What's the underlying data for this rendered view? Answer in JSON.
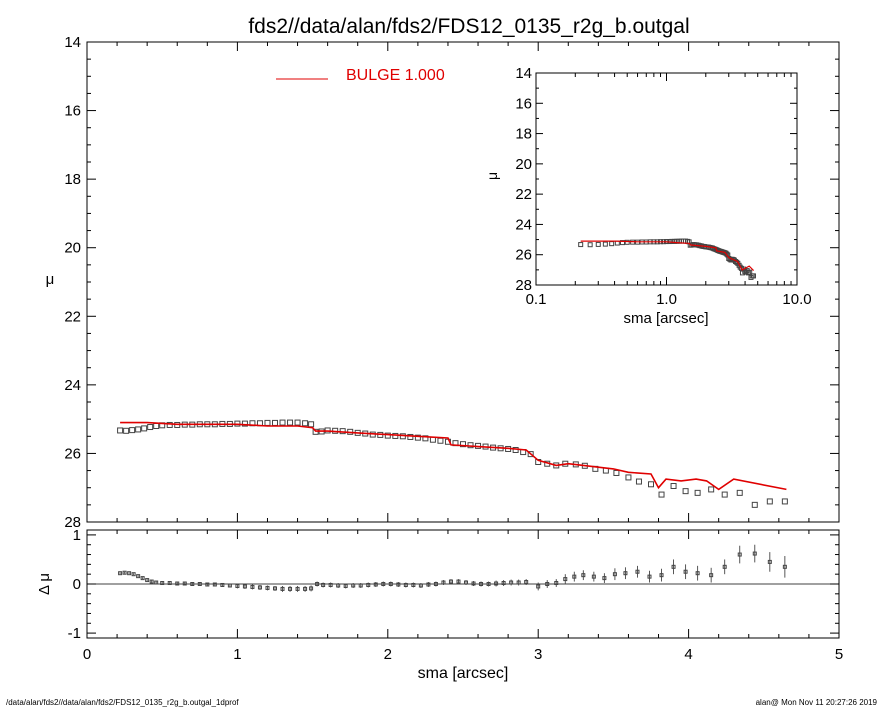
{
  "title": "fds2//data/alan/fds2/FDS12_0135_r2g_b.outgal",
  "footer": {
    "left": "/data/alan/fds2//data/alan/fds2/FDS12_0135_r2g_b.outgal_1dprof",
    "right": "alan@  Mon Nov 11 20:27:26 2019"
  },
  "colors": {
    "model": "#e00000",
    "data": "#444444",
    "axes": "#000000"
  },
  "chart_data": [
    {
      "type": "scatter",
      "panel": "main",
      "xlabel": "",
      "ylabel": "μ",
      "xlim": [
        0,
        5
      ],
      "ylim": [
        28,
        14
      ],
      "yticks": [
        "14",
        "16",
        "18",
        "20",
        "22",
        "24",
        "26",
        "28"
      ],
      "legend": {
        "label": "BULGE  1.000",
        "placement": "top-center"
      },
      "series": [
        {
          "name": "BULGE  1.000",
          "style": "line",
          "x": [
            0.22,
            0.4,
            0.6,
            0.8,
            1.0,
            1.2,
            1.4,
            1.5,
            1.52,
            1.6,
            1.8,
            2.0,
            2.2,
            2.4,
            2.42,
            2.6,
            2.8,
            2.92,
            3.0,
            3.12,
            3.2,
            3.3,
            3.5,
            3.6,
            3.75,
            3.8,
            3.85,
            3.95,
            4.05,
            4.12,
            4.2,
            4.3,
            4.65
          ],
          "y": [
            25.1,
            25.1,
            25.15,
            25.15,
            25.15,
            25.2,
            25.2,
            25.25,
            25.35,
            25.35,
            25.4,
            25.45,
            25.5,
            25.55,
            25.75,
            25.8,
            25.85,
            25.9,
            26.2,
            26.35,
            26.3,
            26.35,
            26.45,
            26.55,
            26.6,
            27.0,
            26.75,
            26.8,
            26.75,
            26.8,
            27.05,
            26.75,
            27.05
          ]
        },
        {
          "name": "",
          "style": "square-markers",
          "x": [
            0.22,
            0.26,
            0.3,
            0.34,
            0.38,
            0.42,
            0.46,
            0.5,
            0.55,
            0.6,
            0.65,
            0.7,
            0.75,
            0.8,
            0.85,
            0.9,
            0.95,
            1.0,
            1.05,
            1.1,
            1.15,
            1.2,
            1.25,
            1.3,
            1.35,
            1.4,
            1.45,
            1.49,
            1.52,
            1.56,
            1.6,
            1.65,
            1.7,
            1.75,
            1.8,
            1.85,
            1.9,
            1.95,
            2.0,
            2.05,
            2.1,
            2.15,
            2.2,
            2.25,
            2.3,
            2.35,
            2.4,
            2.45,
            2.5,
            2.55,
            2.6,
            2.65,
            2.7,
            2.75,
            2.8,
            2.85,
            2.9,
            2.95,
            3.0,
            3.06,
            3.12,
            3.18,
            3.25,
            3.31,
            3.38,
            3.45,
            3.52,
            3.6,
            3.67,
            3.75,
            3.82,
            3.9,
            3.98,
            4.06,
            4.15,
            4.24,
            4.34,
            4.44,
            4.54,
            4.64
          ],
          "y": [
            25.33,
            25.34,
            25.32,
            25.3,
            25.27,
            25.23,
            25.2,
            25.18,
            25.17,
            25.17,
            25.16,
            25.16,
            25.15,
            25.15,
            25.15,
            25.14,
            25.14,
            25.13,
            25.13,
            25.12,
            25.12,
            25.11,
            25.11,
            25.1,
            25.1,
            25.1,
            25.12,
            25.15,
            25.37,
            25.36,
            25.33,
            25.34,
            25.35,
            25.37,
            25.4,
            25.42,
            25.45,
            25.46,
            25.48,
            25.49,
            25.5,
            25.52,
            25.54,
            25.56,
            25.6,
            25.63,
            25.66,
            25.7,
            25.73,
            25.76,
            25.78,
            25.8,
            25.83,
            25.85,
            25.87,
            25.9,
            25.96,
            26.02,
            26.25,
            26.3,
            26.35,
            26.3,
            26.32,
            26.36,
            26.45,
            26.5,
            26.57,
            26.7,
            26.82,
            26.9,
            27.2,
            26.95,
            27.1,
            27.15,
            27.05,
            27.2,
            27.15,
            27.5,
            27.4,
            27.4
          ]
        }
      ]
    },
    {
      "type": "scatter",
      "panel": "residuals",
      "xlabel": "sma [arcsec]",
      "ylabel": "Δ μ",
      "xlim": [
        0,
        5
      ],
      "ylim": [
        -1.1,
        1.1
      ],
      "xticks": [
        "0",
        "1",
        "2",
        "3",
        "4",
        "5"
      ],
      "yticks": [
        "1",
        "0",
        "-1"
      ],
      "series": [
        {
          "name": "",
          "style": "markers-with-errorbars",
          "x": [
            0.22,
            0.25,
            0.28,
            0.31,
            0.34,
            0.37,
            0.4,
            0.43,
            0.46,
            0.5,
            0.55,
            0.6,
            0.65,
            0.7,
            0.75,
            0.8,
            0.85,
            0.9,
            0.95,
            1.0,
            1.05,
            1.1,
            1.15,
            1.2,
            1.25,
            1.3,
            1.35,
            1.4,
            1.45,
            1.49,
            1.53,
            1.57,
            1.62,
            1.67,
            1.72,
            1.77,
            1.82,
            1.87,
            1.92,
            1.97,
            2.02,
            2.07,
            2.12,
            2.17,
            2.22,
            2.27,
            2.32,
            2.37,
            2.42,
            2.47,
            2.52,
            2.57,
            2.62,
            2.67,
            2.72,
            2.77,
            2.82,
            2.87,
            2.92,
            3.0,
            3.06,
            3.12,
            3.18,
            3.24,
            3.3,
            3.37,
            3.44,
            3.51,
            3.58,
            3.66,
            3.74,
            3.82,
            3.9,
            3.98,
            4.06,
            4.15,
            4.24,
            4.34,
            4.44,
            4.54,
            4.64
          ],
          "y": [
            0.22,
            0.23,
            0.22,
            0.2,
            0.16,
            0.12,
            0.08,
            0.05,
            0.03,
            0.02,
            0.02,
            0.01,
            0.01,
            0.0,
            0.0,
            -0.01,
            -0.01,
            -0.02,
            -0.03,
            -0.04,
            -0.05,
            -0.06,
            -0.07,
            -0.08,
            -0.09,
            -0.1,
            -0.1,
            -0.1,
            -0.1,
            -0.09,
            0.0,
            -0.02,
            -0.02,
            -0.03,
            -0.04,
            -0.03,
            -0.03,
            -0.02,
            -0.01,
            0.0,
            0.0,
            -0.01,
            -0.02,
            -0.02,
            -0.03,
            -0.01,
            0.0,
            0.03,
            0.05,
            0.05,
            0.03,
            0.01,
            0.0,
            0.0,
            0.01,
            0.02,
            0.03,
            0.03,
            0.04,
            -0.05,
            0.0,
            0.02,
            0.1,
            0.15,
            0.18,
            0.15,
            0.12,
            0.2,
            0.22,
            0.25,
            0.15,
            0.18,
            0.35,
            0.25,
            0.22,
            0.18,
            0.35,
            0.6,
            0.62,
            0.45,
            0.35
          ],
          "err": [
            0.02,
            0.02,
            0.02,
            0.02,
            0.02,
            0.02,
            0.02,
            0.03,
            0.03,
            0.03,
            0.03,
            0.03,
            0.03,
            0.03,
            0.04,
            0.04,
            0.04,
            0.04,
            0.04,
            0.05,
            0.05,
            0.05,
            0.05,
            0.05,
            0.05,
            0.06,
            0.06,
            0.06,
            0.06,
            0.06,
            0.05,
            0.05,
            0.05,
            0.05,
            0.05,
            0.05,
            0.05,
            0.05,
            0.05,
            0.05,
            0.05,
            0.05,
            0.05,
            0.05,
            0.05,
            0.05,
            0.05,
            0.05,
            0.05,
            0.05,
            0.05,
            0.05,
            0.05,
            0.05,
            0.06,
            0.06,
            0.06,
            0.06,
            0.06,
            0.08,
            0.08,
            0.08,
            0.1,
            0.1,
            0.1,
            0.1,
            0.1,
            0.12,
            0.12,
            0.12,
            0.12,
            0.13,
            0.15,
            0.15,
            0.15,
            0.15,
            0.15,
            0.18,
            0.18,
            0.2,
            0.22
          ]
        }
      ]
    },
    {
      "type": "scatter",
      "panel": "inset",
      "xlabel": "sma [arcsec]",
      "ylabel": "μ",
      "xscale": "log",
      "xlim": [
        0.1,
        10.0
      ],
      "ylim": [
        28,
        14
      ],
      "xticks": [
        "0.1",
        "1.0",
        "10.0"
      ],
      "yticks": [
        "14",
        "16",
        "18",
        "20",
        "22",
        "24",
        "26",
        "28"
      ],
      "series": [
        {
          "name": "",
          "style": "line",
          "x": [
            0.22,
            0.4,
            0.6,
            0.8,
            1.0,
            1.2,
            1.5,
            1.52,
            2.0,
            2.4,
            2.42,
            2.8,
            3.0,
            3.5,
            3.8,
            4.3,
            4.65
          ],
          "y": [
            25.1,
            25.1,
            25.15,
            25.15,
            25.15,
            25.2,
            25.25,
            25.35,
            25.45,
            25.55,
            25.75,
            25.85,
            26.2,
            26.45,
            27.0,
            26.75,
            27.05
          ]
        },
        {
          "name": "",
          "style": "square-markers",
          "x": [
            0.22,
            0.26,
            0.3,
            0.34,
            0.38,
            0.42,
            0.46,
            0.5,
            0.55,
            0.6,
            0.65,
            0.7,
            0.75,
            0.8,
            0.85,
            0.9,
            0.95,
            1.0,
            1.05,
            1.1,
            1.15,
            1.2,
            1.25,
            1.3,
            1.35,
            1.4,
            1.45,
            1.49,
            1.52,
            1.56,
            1.6,
            1.65,
            1.7,
            1.75,
            1.8,
            1.85,
            1.9,
            1.95,
            2.0,
            2.05,
            2.1,
            2.15,
            2.2,
            2.25,
            2.3,
            2.35,
            2.4,
            2.45,
            2.5,
            2.55,
            2.6,
            2.65,
            2.7,
            2.75,
            2.8,
            2.85,
            2.9,
            2.95,
            3.0,
            3.06,
            3.12,
            3.18,
            3.25,
            3.31,
            3.38,
            3.45,
            3.52,
            3.6,
            3.67,
            3.75,
            3.82,
            3.9,
            3.98,
            4.06,
            4.15,
            4.24,
            4.34,
            4.44,
            4.54,
            4.64
          ],
          "y": [
            25.33,
            25.34,
            25.32,
            25.3,
            25.27,
            25.23,
            25.2,
            25.18,
            25.17,
            25.17,
            25.16,
            25.16,
            25.15,
            25.15,
            25.15,
            25.14,
            25.14,
            25.13,
            25.13,
            25.12,
            25.12,
            25.11,
            25.11,
            25.1,
            25.1,
            25.1,
            25.12,
            25.15,
            25.37,
            25.36,
            25.33,
            25.34,
            25.35,
            25.37,
            25.4,
            25.42,
            25.45,
            25.46,
            25.48,
            25.49,
            25.5,
            25.52,
            25.54,
            25.56,
            25.6,
            25.63,
            25.66,
            25.7,
            25.73,
            25.76,
            25.78,
            25.8,
            25.83,
            25.85,
            25.87,
            25.9,
            25.96,
            26.02,
            26.25,
            26.3,
            26.35,
            26.3,
            26.32,
            26.36,
            26.45,
            26.5,
            26.57,
            26.7,
            26.82,
            26.9,
            27.2,
            26.95,
            27.1,
            27.15,
            27.05,
            27.2,
            27.15,
            27.5,
            27.4,
            27.4
          ]
        }
      ]
    }
  ]
}
